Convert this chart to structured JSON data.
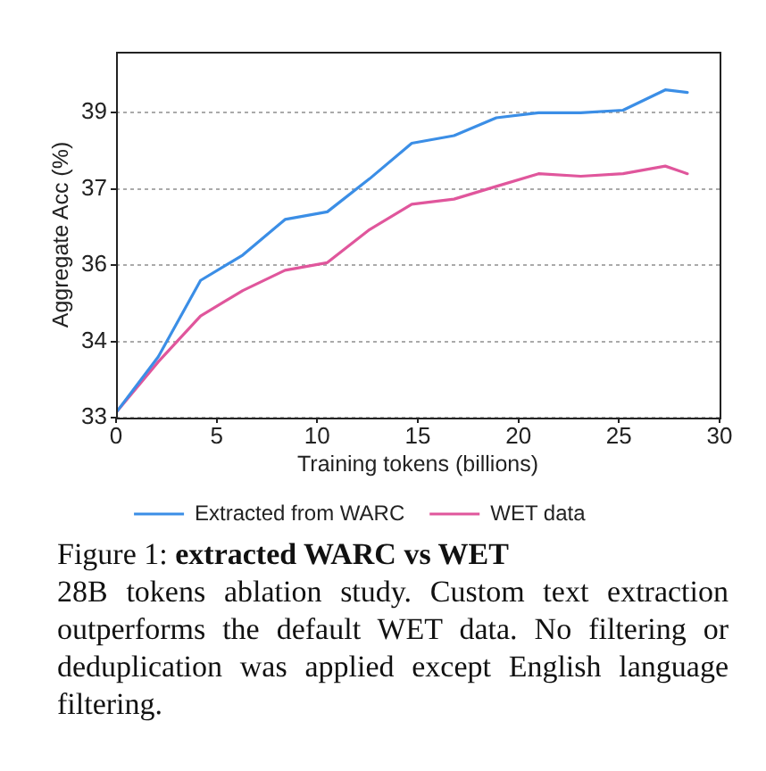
{
  "chart_data": {
    "type": "line",
    "xlabel": "Training tokens (billions)",
    "ylabel": "Aggregate Acc (%)",
    "x": [
      0,
      2.1,
      4.2,
      6.3,
      8.4,
      10.5,
      12.6,
      14.7,
      16.8,
      18.9,
      21,
      23.1,
      25.2,
      27.3,
      28.4
    ],
    "series": [
      {
        "name": "Extracted from WARC",
        "color": "#3b8ee6",
        "values": [
          33.1,
          34.2,
          35.7,
          36.2,
          36.9,
          37.05,
          37.7,
          38.4,
          38.55,
          38.9,
          39.0,
          39.0,
          39.05,
          39.45,
          39.4
        ]
      },
      {
        "name": "WET data",
        "color": "#e0569c",
        "values": [
          33.1,
          34.1,
          35.0,
          35.5,
          35.9,
          36.05,
          36.7,
          37.2,
          37.3,
          37.55,
          37.8,
          37.75,
          37.8,
          37.95,
          37.8
        ]
      }
    ],
    "xlim": [
      0,
      30
    ],
    "xticks": [
      0,
      5,
      10,
      15,
      20,
      25,
      30
    ],
    "ylim": [
      33,
      40.2
    ],
    "yticks": [
      33,
      {
        "value": 34.5,
        "label": "34"
      },
      36,
      {
        "value": 37.5,
        "label": "37"
      },
      39
    ],
    "grid": "y",
    "legend": "bottom",
    "annotations": [
      "Figure 1:",
      "extracted WARC vs WET",
      "28B tokens ablation study. Custom text extraction outperforms the default WET data. No filtering or deduplication was applied except English language filtering."
    ]
  }
}
